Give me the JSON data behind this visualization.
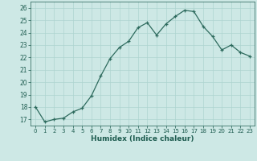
{
  "x": [
    0,
    1,
    2,
    3,
    4,
    5,
    6,
    7,
    8,
    9,
    10,
    11,
    12,
    13,
    14,
    15,
    16,
    17,
    18,
    19,
    20,
    21,
    22,
    23
  ],
  "y": [
    18.0,
    16.8,
    17.0,
    17.1,
    17.6,
    17.9,
    18.9,
    20.5,
    21.9,
    22.8,
    23.3,
    24.4,
    24.8,
    23.8,
    24.7,
    25.3,
    25.8,
    25.7,
    24.5,
    23.7,
    22.6,
    23.0,
    22.4,
    22.1
  ],
  "xlabel": "Humidex (Indice chaleur)",
  "xlim": [
    -0.5,
    23.5
  ],
  "ylim": [
    16.5,
    26.5
  ],
  "yticks": [
    17,
    18,
    19,
    20,
    21,
    22,
    23,
    24,
    25,
    26
  ],
  "xticks": [
    0,
    1,
    2,
    3,
    4,
    5,
    6,
    7,
    8,
    9,
    10,
    11,
    12,
    13,
    14,
    15,
    16,
    17,
    18,
    19,
    20,
    21,
    22,
    23
  ],
  "line_color": "#2e6b5e",
  "marker_color": "#2e6b5e",
  "bg_color": "#cde8e5",
  "grid_color": "#aed4d0",
  "text_color": "#1e5c50"
}
